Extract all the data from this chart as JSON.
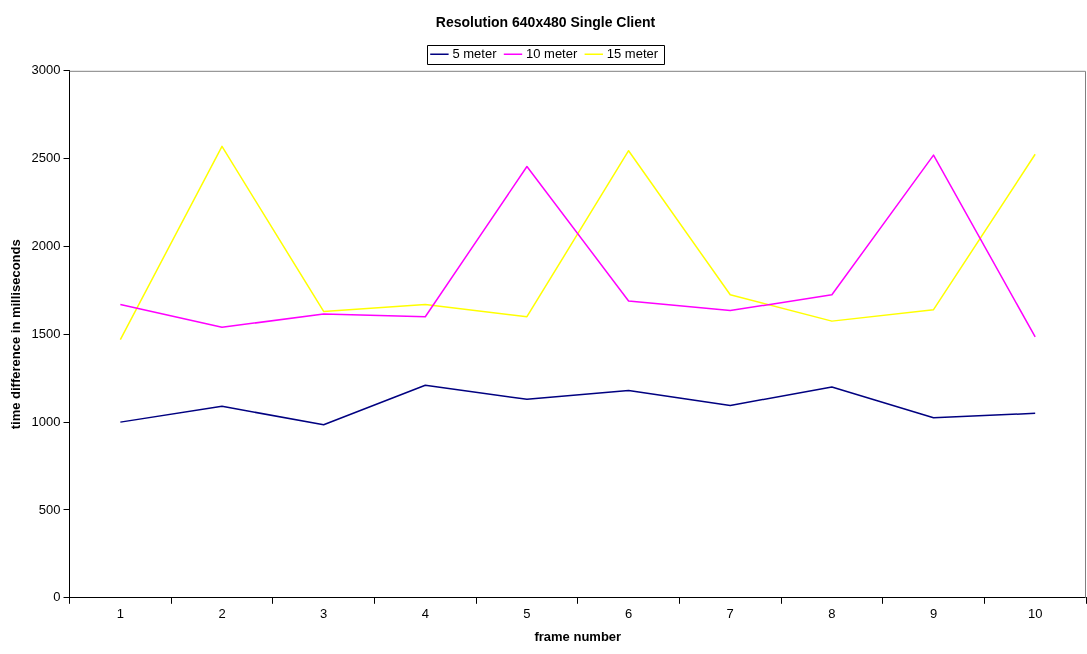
{
  "chart_data": {
    "type": "line",
    "title": "Resolution 640x480 Single Client",
    "xlabel": "frame number",
    "ylabel": "time difference in milliseconds",
    "categories": [
      "1",
      "2",
      "3",
      "4",
      "5",
      "6",
      "7",
      "8",
      "9",
      "10"
    ],
    "series": [
      {
        "name": "5 meter",
        "color": "#000080",
        "values": [
          1000,
          1090,
          985,
          1210,
          1130,
          1180,
          1095,
          1200,
          1025,
          1050
        ]
      },
      {
        "name": "10 meter",
        "color": "#ff00ff",
        "values": [
          1670,
          1540,
          1615,
          1600,
          2455,
          1690,
          1635,
          1725,
          2520,
          1485
        ]
      },
      {
        "name": "15 meter",
        "color": "#ffff00",
        "values": [
          1470,
          2570,
          1630,
          1670,
          1600,
          2545,
          1725,
          1575,
          1640,
          2525
        ]
      }
    ],
    "ylim": [
      0,
      3000
    ],
    "yticks": [
      0,
      500,
      1000,
      1500,
      2000,
      2500,
      3000
    ],
    "grid": false,
    "legend": "top",
    "marker": "none",
    "line_style": "solid"
  }
}
